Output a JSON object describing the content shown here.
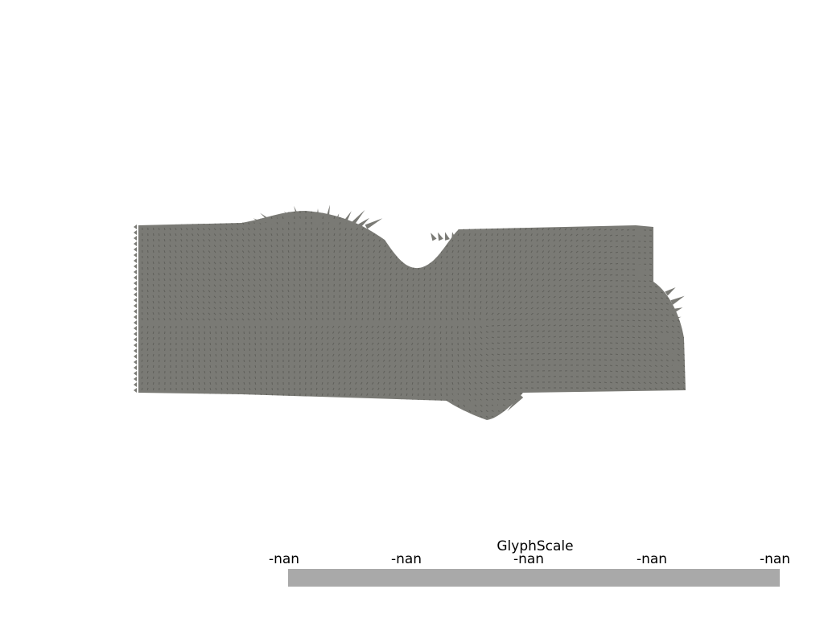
{
  "scene": {
    "glyph_color": "#7a7a75",
    "background_color": "#ffffff"
  },
  "scalar_bar": {
    "title": "GlyphScale",
    "tick_labels": [
      "-nan",
      "-nan",
      "-nan",
      "-nan",
      "-nan"
    ],
    "bar_color": "#a9a9a9"
  }
}
